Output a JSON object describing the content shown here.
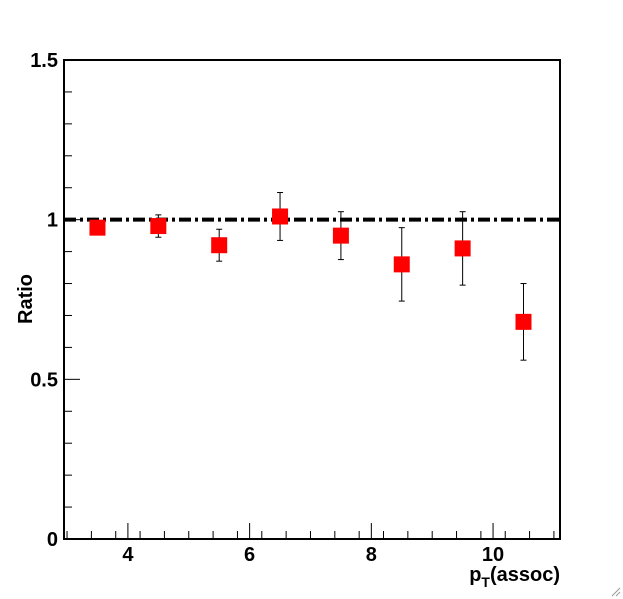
{
  "chart_data": {
    "type": "scatter",
    "xlabel": "(assoc)",
    "xlabel_var": "p",
    "xlabel_sub": "T",
    "ylabel": "Ratio",
    "xlim": [
      2.95,
      11.1
    ],
    "ylim": [
      0,
      1.5
    ],
    "x_ticks": [
      4,
      6,
      8,
      10
    ],
    "x_tick_labels": [
      "4",
      "6",
      "8",
      "10"
    ],
    "y_ticks": [
      0,
      0.5,
      1,
      1.5
    ],
    "y_tick_labels": [
      "0",
      "0.5",
      "1",
      "1.5"
    ],
    "reference_line": {
      "y": 1.0,
      "style": "dash-dot",
      "color": "#000000"
    },
    "marker_color": "#ff0000",
    "marker": "square",
    "grid": false,
    "legend": "none",
    "points": [
      {
        "x": 3.5,
        "y": 0.975,
        "err": 0.02
      },
      {
        "x": 4.5,
        "y": 0.98,
        "err": 0.035
      },
      {
        "x": 5.5,
        "y": 0.92,
        "err": 0.05
      },
      {
        "x": 6.5,
        "y": 1.01,
        "err": 0.075
      },
      {
        "x": 7.5,
        "y": 0.95,
        "err": 0.075
      },
      {
        "x": 8.5,
        "y": 0.86,
        "err": 0.115
      },
      {
        "x": 9.5,
        "y": 0.91,
        "err": 0.115
      },
      {
        "x": 10.5,
        "y": 0.68,
        "err": 0.12
      }
    ]
  }
}
